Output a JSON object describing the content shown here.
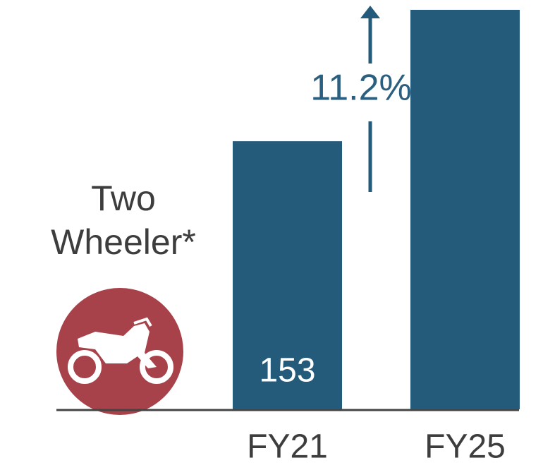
{
  "chart_data": {
    "type": "bar",
    "title": "Two Wheeler*",
    "categories": [
      "FY21",
      "FY25"
    ],
    "values": [
      153,
      228
    ],
    "value_labels": [
      "153",
      null
    ],
    "color": "#245a7a",
    "ylim": [
      0,
      232
    ],
    "annotation": "11.2%"
  }
}
